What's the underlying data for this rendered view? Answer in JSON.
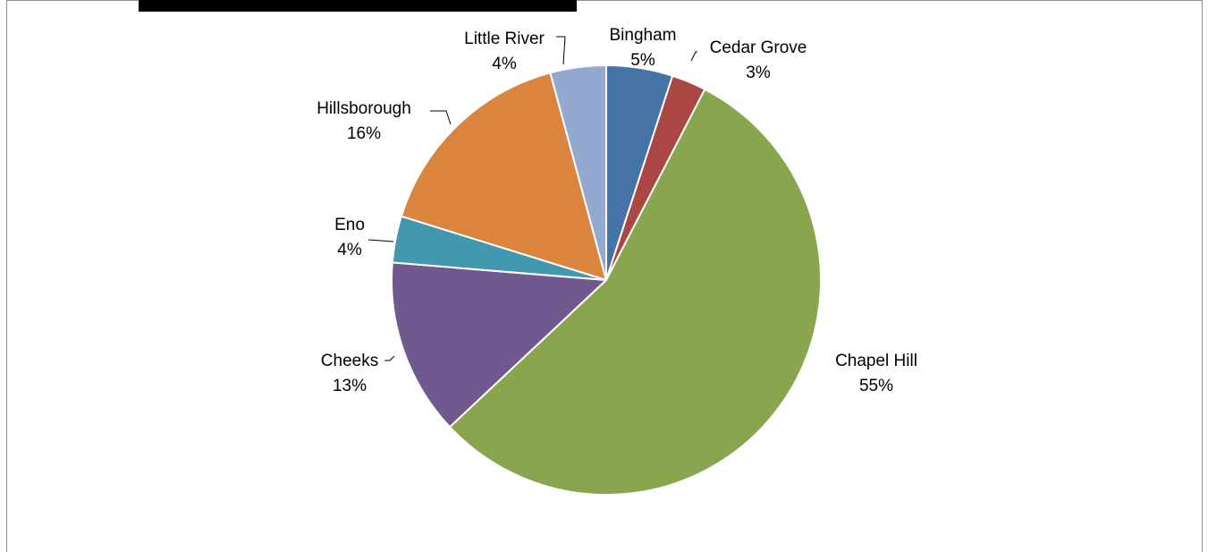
{
  "chart_data": {
    "type": "pie",
    "title": "",
    "slices": [
      {
        "name": "Bingham",
        "label": "5%",
        "value": 5.0,
        "color": "#4572a7"
      },
      {
        "name": "Cedar Grove",
        "label": "3%",
        "value": 2.6,
        "color": "#aa4643"
      },
      {
        "name": "Chapel Hill",
        "label": "55%",
        "value": 55.4,
        "color": "#89a54e"
      },
      {
        "name": "Cheeks",
        "label": "13%",
        "value": 13.3,
        "color": "#71588f"
      },
      {
        "name": "Eno",
        "label": "4%",
        "value": 3.5,
        "color": "#4198af"
      },
      {
        "name": "Hillsborough",
        "label": "16%",
        "value": 16.0,
        "color": "#db843d"
      },
      {
        "name": "Little River",
        "label": "4%",
        "value": 4.2,
        "color": "#93a9cf"
      }
    ],
    "start_angle_deg": 0,
    "direction": "clockwise",
    "legend": "none",
    "data_labels": "category-and-percent"
  }
}
